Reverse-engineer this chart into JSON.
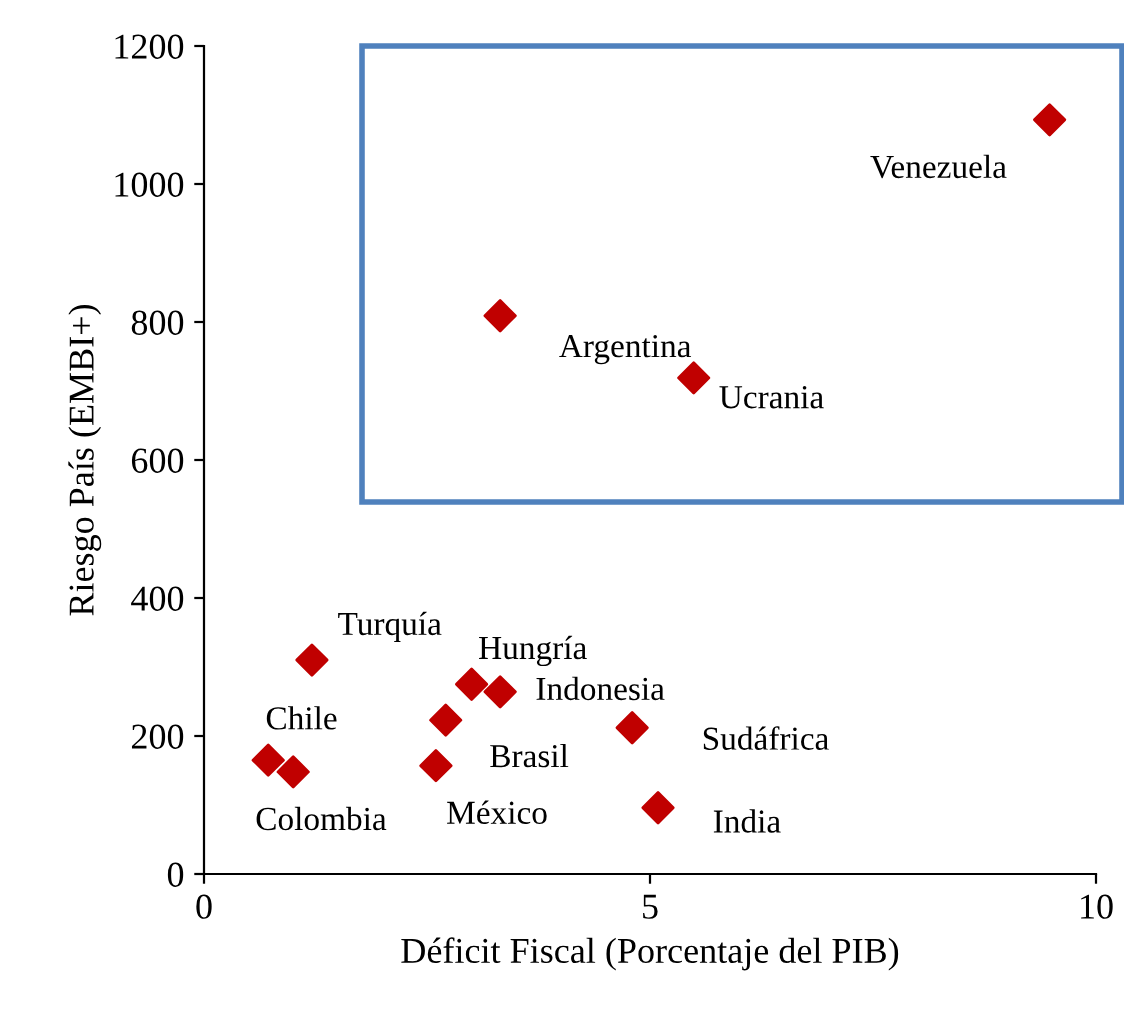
{
  "chart_data": {
    "type": "scatter",
    "xlabel": "Déficit Fiscal (Porcentaje del PIB)",
    "ylabel": "Riesgo País (EMBI+)",
    "x": [
      9.48,
      3.32,
      5.49,
      1.21,
      3.0,
      3.32,
      2.71,
      4.8,
      0.72,
      1.0,
      2.6,
      5.09
    ],
    "series": [
      {
        "color": "#c00000",
        "values": [
          1093,
          809,
          719,
          310,
          275,
          264,
          223,
          212,
          165,
          148,
          157,
          96
        ]
      }
    ],
    "annotations": [
      {
        "text": "Venezuela",
        "x": 9.48,
        "y": 1093
      },
      {
        "text": "Argentina",
        "x": 3.32,
        "y": 809
      },
      {
        "text": "Ucrania",
        "x": 5.49,
        "y": 719
      },
      {
        "text": "Turquía",
        "x": 1.21,
        "y": 310
      },
      {
        "text": "Hungría",
        "x": 3.0,
        "y": 275
      },
      {
        "text": "Indonesia",
        "x": 3.32,
        "y": 264
      },
      {
        "text": "Brasil",
        "x": 2.71,
        "y": 223
      },
      {
        "text": "Sudáfrica",
        "x": 4.8,
        "y": 212
      },
      {
        "text": "Chile",
        "x": 0.72,
        "y": 165
      },
      {
        "text": "Colombia",
        "x": 1.0,
        "y": 148
      },
      {
        "text": "México",
        "x": 2.6,
        "y": 157
      },
      {
        "text": "India",
        "x": 5.09,
        "y": 96
      }
    ],
    "xlim": [
      0,
      10
    ],
    "ylim": [
      0,
      1200
    ],
    "xticks": [
      0,
      5,
      10
    ],
    "yticks": [
      0,
      200,
      400,
      600,
      800,
      1000,
      1200
    ],
    "marker": "diamond",
    "grid": false,
    "legend": false
  }
}
